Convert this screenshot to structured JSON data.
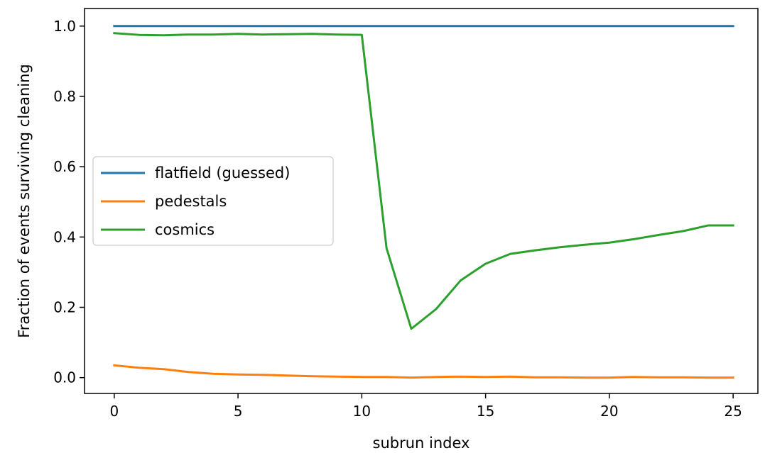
{
  "chart_data": {
    "type": "line",
    "xlabel": "subrun index",
    "ylabel": "Fraction of events surviving cleaning",
    "xlim": [
      -1.2,
      26.0
    ],
    "ylim": [
      -0.045,
      1.05
    ],
    "xticks": [
      0,
      5,
      10,
      15,
      20,
      25
    ],
    "yticks": [
      0.0,
      0.2,
      0.4,
      0.6,
      0.8,
      1.0
    ],
    "xtick_labels": [
      "0",
      "5",
      "10",
      "15",
      "20",
      "25"
    ],
    "ytick_labels": [
      "0.0",
      "0.2",
      "0.4",
      "0.6",
      "0.8",
      "1.0"
    ],
    "grid": false,
    "legend_position": "center-left",
    "x": [
      0,
      1,
      2,
      3,
      4,
      5,
      6,
      7,
      8,
      9,
      10,
      11,
      12,
      13,
      14,
      15,
      16,
      17,
      18,
      19,
      20,
      21,
      22,
      23,
      24,
      25
    ],
    "series": [
      {
        "name": "flatfield (guessed)",
        "color": "#1f77b4",
        "values": [
          1.0,
          1.0,
          1.0,
          1.0,
          1.0,
          1.0,
          1.0,
          1.0,
          1.0,
          1.0,
          1.0,
          1.0,
          1.0,
          1.0,
          1.0,
          1.0,
          1.0,
          1.0,
          1.0,
          1.0,
          1.0,
          1.0,
          1.0,
          1.0,
          1.0,
          1.0
        ]
      },
      {
        "name": "pedestals",
        "color": "#ff7f0e",
        "values": [
          0.035,
          0.028,
          0.024,
          0.016,
          0.011,
          0.009,
          0.008,
          0.006,
          0.004,
          0.003,
          0.002,
          0.002,
          0.0,
          0.002,
          0.003,
          0.002,
          0.003,
          0.001,
          0.001,
          0.0,
          0.0,
          0.002,
          0.001,
          0.001,
          0.0,
          0.0
        ]
      },
      {
        "name": "cosmics",
        "color": "#2ca02c",
        "values": [
          0.98,
          0.975,
          0.974,
          0.976,
          0.976,
          0.978,
          0.976,
          0.977,
          0.978,
          0.976,
          0.975,
          0.368,
          0.139,
          0.195,
          0.277,
          0.324,
          0.352,
          0.362,
          0.371,
          0.378,
          0.384,
          0.394,
          0.406,
          0.417,
          0.433,
          0.433
        ]
      }
    ]
  }
}
